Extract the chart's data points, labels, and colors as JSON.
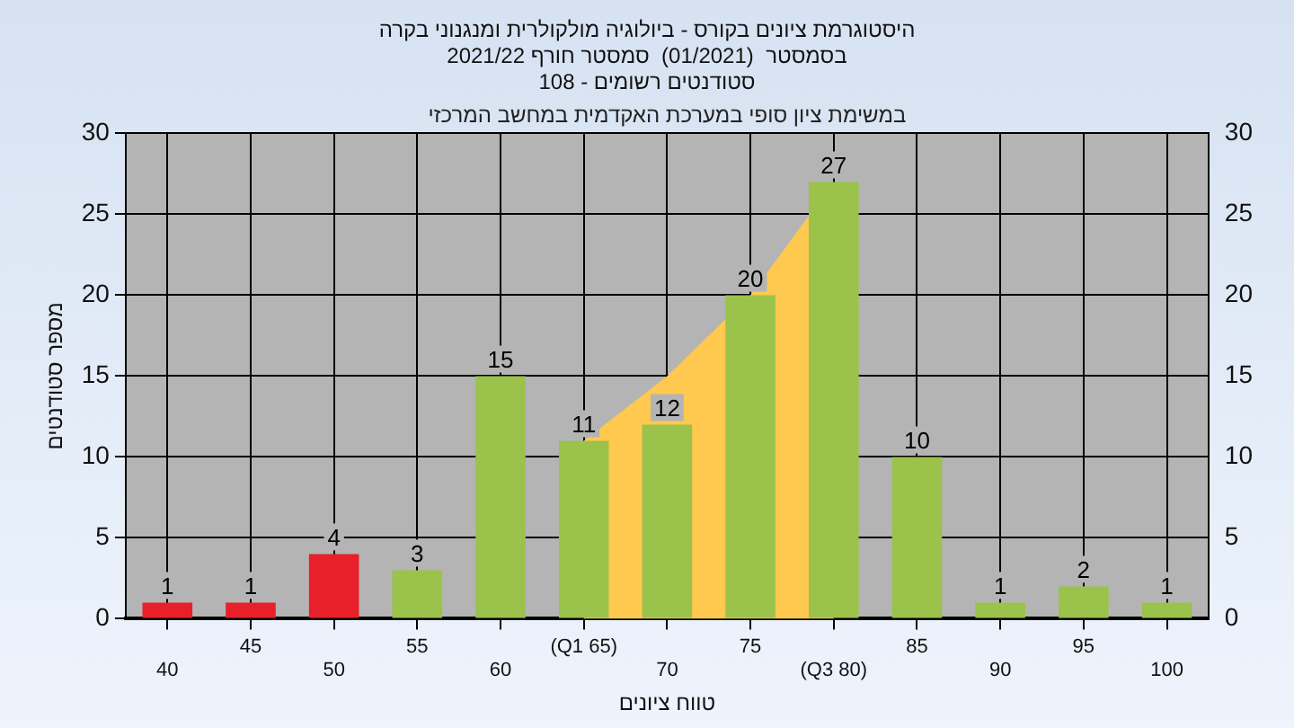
{
  "chart_data": {
    "type": "bar",
    "title": "היסטוגרמת ציונים בקורס - ביולוגיה מולקולרית ומנגנוני בקרה",
    "subtitle": "בסמסטר  (01/2021)  סמסטר חורף 2021/22\nסטודנטים רשומים - 108",
    "xlabel": "טווח ציונים",
    "ylabel": "מספר סטודנטים",
    "annotations": [
      "במשימת ציון סופי במערכת האקדמית במחשב המרכזי"
    ],
    "categories": [
      "40",
      "45",
      "50",
      "55",
      "60",
      "(Q1 65)",
      "70",
      "75",
      "(Q3 80)",
      "85",
      "90",
      "95",
      "100"
    ],
    "series": [
      {
        "type": "area",
        "color": "#ffc94f",
        "values": [
          null,
          null,
          null,
          null,
          null,
          11,
          15,
          20,
          27,
          null,
          null,
          null,
          null
        ]
      },
      {
        "value_labels": [
          "1",
          "1",
          "4",
          "3",
          "15",
          "11",
          "12",
          "20",
          "27",
          "10",
          "1",
          "2",
          "1"
        ],
        "colors": [
          "#e8202a",
          "#e8202a",
          "#e8202a",
          "#9bc24a",
          "#9bc24a",
          "#9bc24a",
          "#9bc24a",
          "#9bc24a",
          "#9bc24a",
          "#9bc24a",
          "#9bc24a",
          "#9bc24a",
          "#9bc24a"
        ],
        "values": [
          1,
          1,
          4,
          3,
          15,
          11,
          12,
          20,
          27,
          10,
          1,
          2,
          1
        ]
      }
    ],
    "ylim": [
      0,
      30
    ],
    "yticks": [
      0,
      5,
      10,
      15,
      20,
      25,
      30
    ],
    "y2lim": [
      0,
      30
    ],
    "y2ticks": [
      0,
      5,
      10,
      15,
      20,
      25,
      30
    ],
    "grid": true,
    "legend": false
  }
}
